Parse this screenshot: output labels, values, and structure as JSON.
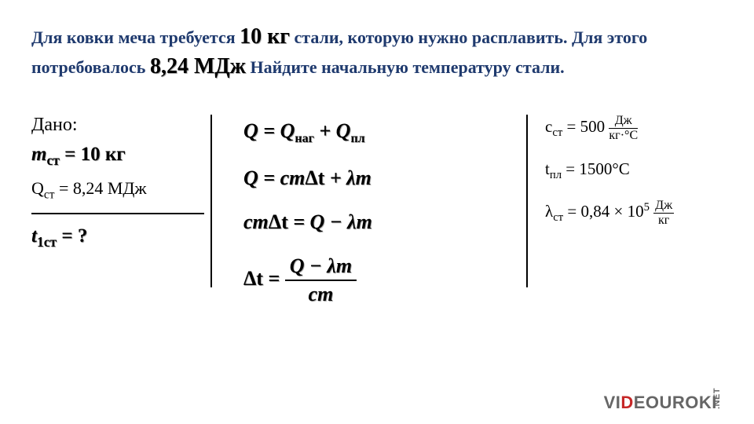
{
  "problem": {
    "line1_pre": "Для ковки меча требуется ",
    "q1": "10 кг",
    "line1_post": " стали, которую нужно расплавить. Для этого потребовалось ",
    "q2": "8,24 МДж",
    "line2_post": " Найдите начальную температуру стали."
  },
  "given": {
    "title": "Дано:",
    "mass_var": "m",
    "mass_sub": "ст",
    "mass_eq": " = 10 ",
    "mass_unit": "кг",
    "heat": "Q<sub>ст</sub> = 8,24 МДж",
    "find_var": "t",
    "find_sub": "1ст",
    "find_eq": "= ?"
  },
  "solution": {
    "eq1_l": "Q = Q",
    "eq1_s1": "наг",
    "eq1_m": " + Q",
    "eq1_s2": "пл",
    "eq2": "Q = cm",
    "eq2_dt": "Δt",
    "eq2_r": " + λm",
    "eq3_l": "cm",
    "eq3_dt": "Δt",
    "eq3_r": " = Q − λm",
    "eq4_l": "Δt = ",
    "eq4_num": "Q − λm",
    "eq4_den": "cm"
  },
  "refs": {
    "c": "c<sub>ст</sub> = 500 ",
    "c_num": "Дж",
    "c_den": "кг·°C",
    "t": "t<sub>пл</sub> = 1500°C",
    "l": "λ<sub>ст</sub> = 0,84 × 10<sup>5</sup> ",
    "l_num": "Дж",
    "l_den": "кг"
  },
  "logo": {
    "p1": "VI",
    "d": "D",
    "p2": "EOUROKI",
    "net": ".NET"
  }
}
